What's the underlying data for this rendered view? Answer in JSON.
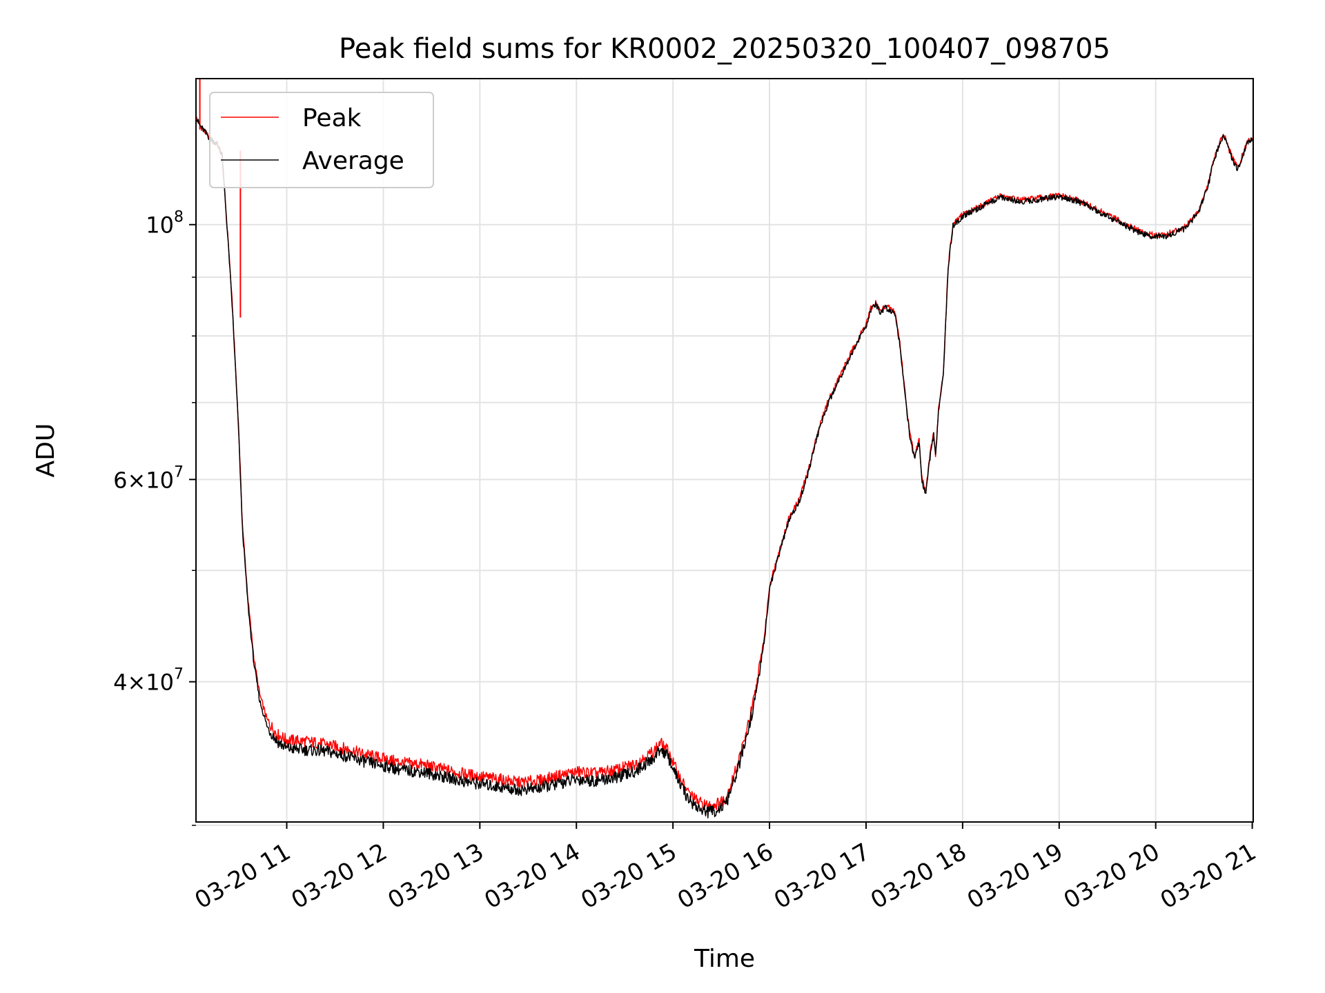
{
  "chart_data": {
    "type": "line",
    "title": "Peak field sums for KR0002_20250320_100407_098705",
    "xlabel": "Time",
    "ylabel": "ADU",
    "x_unit": "2025-03-20 time of day (decimal hours)",
    "xlim": [
      10.06,
      21.01
    ],
    "ylim": [
      30200000,
      134000000
    ],
    "yscale": "log",
    "grid": true,
    "legend_position": "upper-left",
    "x_ticks": [
      {
        "value": 11,
        "label": "03-20 11"
      },
      {
        "value": 12,
        "label": "03-20 12"
      },
      {
        "value": 13,
        "label": "03-20 13"
      },
      {
        "value": 14,
        "label": "03-20 14"
      },
      {
        "value": 15,
        "label": "03-20 15"
      },
      {
        "value": 16,
        "label": "03-20 16"
      },
      {
        "value": 17,
        "label": "03-20 17"
      },
      {
        "value": 18,
        "label": "03-20 18"
      },
      {
        "value": 19,
        "label": "03-20 19"
      },
      {
        "value": 20,
        "label": "03-20 20"
      },
      {
        "value": 21,
        "label": "03-20 21"
      }
    ],
    "y_ticks_major": [
      {
        "value": 100000000,
        "base": "10",
        "exp": "8",
        "mant": ""
      },
      {
        "value": 60000000,
        "base": "10",
        "exp": "7",
        "mant": "6"
      },
      {
        "value": 40000000,
        "base": "10",
        "exp": "7",
        "mant": "4"
      }
    ],
    "y_ticks_minor": [
      30000000,
      50000000,
      70000000,
      80000000,
      90000000
    ],
    "series": [
      {
        "name": "Peak",
        "color": "#ff0000",
        "x": [
          10.06,
          10.1,
          10.2,
          10.28,
          10.33,
          10.4,
          10.44,
          10.5,
          10.54,
          10.6,
          10.66,
          10.72,
          10.8,
          10.9,
          11.0,
          11.2,
          11.4,
          11.6,
          11.8,
          12.0,
          12.2,
          12.4,
          12.6,
          12.8,
          13.0,
          13.2,
          13.4,
          13.6,
          13.8,
          14.0,
          14.2,
          14.4,
          14.6,
          14.8,
          14.87,
          14.95,
          15.05,
          15.15,
          15.25,
          15.35,
          15.45,
          15.55,
          15.65,
          15.75,
          15.85,
          15.95,
          16.0,
          16.1,
          16.2,
          16.3,
          16.4,
          16.5,
          16.6,
          16.7,
          16.8,
          16.9,
          17.0,
          17.05,
          17.1,
          17.15,
          17.2,
          17.3,
          17.35,
          17.4,
          17.45,
          17.5,
          17.55,
          17.58,
          17.62,
          17.65,
          17.7,
          17.72,
          17.75,
          17.8,
          17.85,
          17.9,
          18.0,
          18.1,
          18.2,
          18.3,
          18.4,
          18.6,
          18.8,
          19.0,
          19.2,
          19.4,
          19.6,
          19.8,
          19.95,
          20.1,
          20.3,
          20.45,
          20.55,
          20.6,
          20.65,
          20.7,
          20.78,
          20.85,
          20.9,
          20.95,
          21.0
        ],
        "y": [
          124000000,
          122000000,
          119000000,
          117500000,
          115000000,
          95000000,
          84000000,
          67000000,
          55000000,
          47000000,
          42000000,
          39000000,
          37000000,
          36000000,
          35600000,
          35500000,
          35300000,
          35000000,
          34600000,
          34300000,
          34000000,
          33900000,
          33600000,
          33300000,
          33100000,
          32900000,
          32700000,
          32800000,
          33100000,
          33400000,
          33300000,
          33500000,
          33900000,
          34800000,
          35400000,
          34800000,
          33300000,
          32100000,
          31500000,
          31200000,
          31300000,
          31700000,
          33500000,
          35800000,
          39000000,
          44000000,
          48500000,
          52000000,
          55500000,
          57500000,
          61000000,
          66000000,
          70000000,
          73000000,
          76000000,
          79000000,
          82000000,
          84500000,
          85500000,
          84000000,
          85000000,
          84000000,
          79000000,
          72000000,
          66000000,
          63000000,
          65000000,
          60000000,
          58500000,
          62000000,
          66000000,
          63000000,
          69000000,
          74000000,
          92000000,
          100000000,
          102000000,
          103000000,
          104000000,
          105000000,
          106000000,
          105000000,
          105500000,
          106000000,
          105000000,
          103000000,
          101000000,
          99000000,
          98000000,
          98000000,
          99500000,
          103000000,
          109000000,
          114000000,
          117000000,
          120000000,
          115000000,
          112000000,
          115000000,
          118000000,
          119000000
        ]
      },
      {
        "name": "Average",
        "color": "#000000",
        "x": [
          10.06,
          10.1,
          10.2,
          10.28,
          10.33,
          10.4,
          10.44,
          10.5,
          10.54,
          10.6,
          10.66,
          10.72,
          10.8,
          10.9,
          11.0,
          11.2,
          11.4,
          11.6,
          11.8,
          12.0,
          12.2,
          12.4,
          12.6,
          12.8,
          13.0,
          13.2,
          13.4,
          13.6,
          13.8,
          14.0,
          14.2,
          14.4,
          14.6,
          14.8,
          14.87,
          14.95,
          15.05,
          15.15,
          15.25,
          15.35,
          15.45,
          15.55,
          15.65,
          15.75,
          15.85,
          15.95,
          16.0,
          16.1,
          16.2,
          16.3,
          16.4,
          16.5,
          16.6,
          16.7,
          16.8,
          16.9,
          17.0,
          17.05,
          17.1,
          17.15,
          17.2,
          17.3,
          17.35,
          17.4,
          17.45,
          17.5,
          17.55,
          17.58,
          17.62,
          17.65,
          17.7,
          17.72,
          17.75,
          17.8,
          17.85,
          17.9,
          18.0,
          18.1,
          18.2,
          18.3,
          18.4,
          18.6,
          18.8,
          19.0,
          19.2,
          19.4,
          19.6,
          19.8,
          19.95,
          20.1,
          20.3,
          20.45,
          20.55,
          20.6,
          20.65,
          20.7,
          20.78,
          20.85,
          20.9,
          20.95,
          21.0
        ],
        "y": [
          124000000,
          122000000,
          119000000,
          117500000,
          115000000,
          94500000,
          83500000,
          66500000,
          54500000,
          46500000,
          41500000,
          38500000,
          36500000,
          35500000,
          35000000,
          34900000,
          34800000,
          34500000,
          34100000,
          33800000,
          33500000,
          33400000,
          33100000,
          32800000,
          32600000,
          32400000,
          32200000,
          32300000,
          32600000,
          32900000,
          32800000,
          33000000,
          33400000,
          34300000,
          35000000,
          34400000,
          32900000,
          31700000,
          31100000,
          30800000,
          30900000,
          31300000,
          33100000,
          35400000,
          38600000,
          43600000,
          48200000,
          51700000,
          55200000,
          57200000,
          60700000,
          65700000,
          69700000,
          72700000,
          75700000,
          78700000,
          81700000,
          84200000,
          85200000,
          83700000,
          84700000,
          83700000,
          78700000,
          71700000,
          65700000,
          62700000,
          64700000,
          59700000,
          58200000,
          61700000,
          65700000,
          62700000,
          68700000,
          73700000,
          91700000,
          99700000,
          101700000,
          102700000,
          103700000,
          104700000,
          105700000,
          104700000,
          105200000,
          105700000,
          104700000,
          102700000,
          100700000,
          98700000,
          97700000,
          97700000,
          99200000,
          102700000,
          108700000,
          113700000,
          116700000,
          119700000,
          114700000,
          111700000,
          114700000,
          117700000,
          118700000
        ]
      }
    ],
    "spikes": [
      {
        "series": "Peak",
        "x": 10.1,
        "y_from": 121000000,
        "y_to": 134000000
      },
      {
        "series": "Peak",
        "x": 10.52,
        "y_from": 83000000,
        "y_to": 116000000
      }
    ]
  }
}
